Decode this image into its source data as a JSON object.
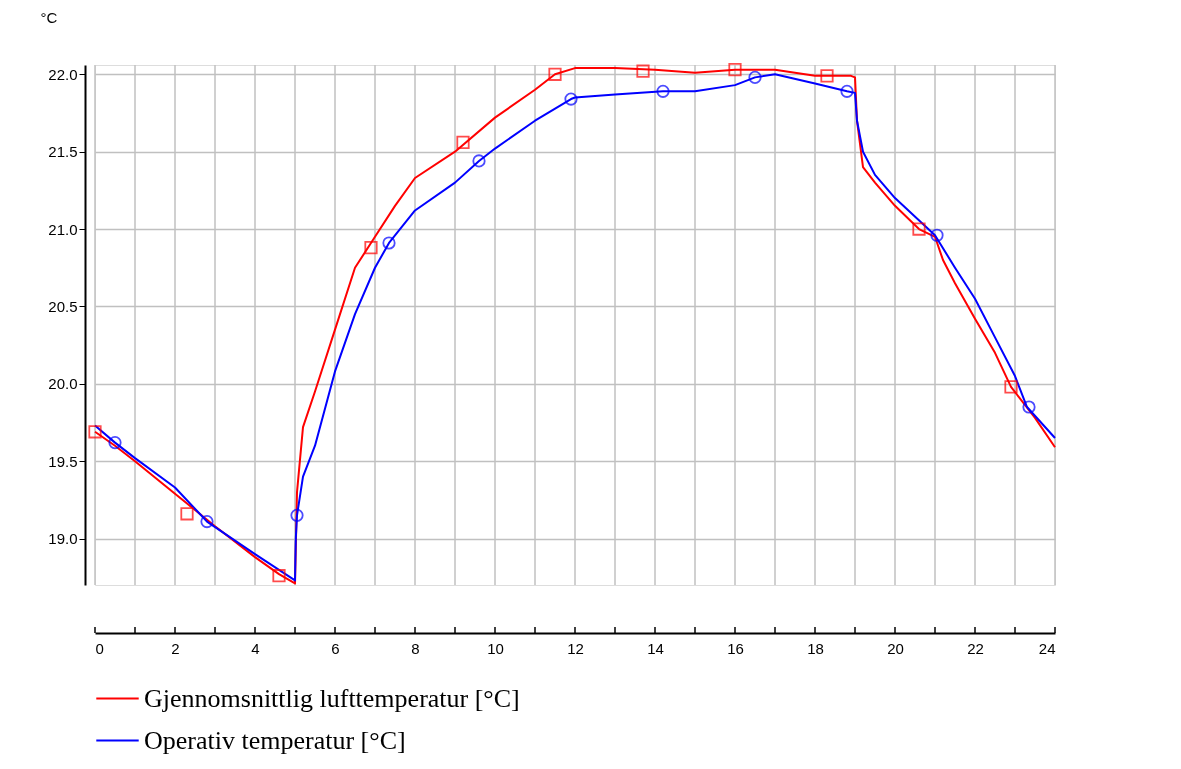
{
  "chart_data": {
    "type": "line",
    "ylabel": "°C",
    "xlim": [
      0,
      24
    ],
    "ylim": [
      18.7,
      22.06
    ],
    "xticks": [
      0,
      {
        "value": 1,
        "label": null
      },
      2,
      {
        "value": 3,
        "label": null
      },
      4,
      {
        "value": 5,
        "label": null
      },
      6,
      {
        "value": 7,
        "label": null
      },
      8,
      {
        "value": 9,
        "label": null
      },
      10,
      {
        "value": 11,
        "label": null
      },
      12,
      {
        "value": 13,
        "label": null
      },
      14,
      {
        "value": 15,
        "label": null
      },
      16,
      {
        "value": 17,
        "label": null
      },
      18,
      {
        "value": 19,
        "label": null
      },
      20,
      {
        "value": 21,
        "label": null
      },
      22,
      {
        "value": 23,
        "label": null
      },
      24
    ],
    "yticks": [
      {
        "value": 19,
        "label": "19.0"
      },
      19.5,
      {
        "value": 20,
        "label": "20.0"
      },
      20.5,
      {
        "value": 21,
        "label": "21.0"
      },
      21.5,
      {
        "value": 22,
        "label": "22.0"
      }
    ],
    "grid": true,
    "legend": "bottom",
    "line_style": "solid",
    "series": [
      {
        "name": "Gjennomsnittlig lufttemperatur [°C]",
        "color": "#ff0000",
        "x": [
          0,
          0.5,
          1,
          2,
          3,
          4,
          4.6,
          5,
          5.05,
          5.2,
          5.5,
          6,
          6.5,
          7,
          7.5,
          8,
          9,
          10,
          11,
          11.5,
          12,
          13,
          14,
          15,
          16,
          17,
          18,
          18.9,
          19,
          19.05,
          19.2,
          19.5,
          20,
          20.6,
          21,
          21.2,
          21.5,
          22,
          22.5,
          22.9,
          23.5,
          24
        ],
        "values": [
          19.69,
          19.6,
          19.5,
          19.29,
          19.08,
          18.88,
          18.77,
          18.71,
          19.3,
          19.72,
          19.95,
          20.35,
          20.75,
          20.95,
          21.15,
          21.33,
          21.5,
          21.72,
          21.9,
          22.0,
          22.04,
          22.04,
          22.03,
          22.01,
          22.03,
          22.03,
          21.99,
          21.99,
          21.98,
          21.7,
          21.4,
          21.3,
          21.15,
          21.0,
          20.95,
          20.8,
          20.65,
          20.42,
          20.2,
          19.98,
          19.78,
          19.59
        ]
      },
      {
        "name": "Operativ temperatur [°C]",
        "color": "#0000ff",
        "x": [
          0,
          0.5,
          1,
          2,
          2.8,
          4,
          5,
          5.02,
          5.05,
          5.2,
          5.5,
          6,
          6.5,
          7,
          7.35,
          8,
          9,
          9.6,
          10,
          11,
          11.9,
          12,
          13,
          14.2,
          15,
          16,
          16.5,
          17,
          18,
          18.8,
          19,
          19.05,
          19.2,
          19.5,
          20,
          21,
          21.5,
          22,
          22.5,
          23,
          23.3,
          24
        ],
        "values": [
          19.73,
          19.62,
          19.52,
          19.33,
          19.11,
          18.9,
          18.73,
          19.0,
          19.15,
          19.4,
          19.6,
          20.08,
          20.45,
          20.75,
          20.91,
          21.12,
          21.3,
          21.44,
          21.52,
          21.7,
          21.84,
          21.85,
          21.87,
          21.89,
          21.89,
          21.93,
          21.98,
          22.0,
          21.94,
          21.89,
          21.88,
          21.7,
          21.5,
          21.35,
          21.2,
          20.96,
          20.75,
          20.55,
          20.3,
          20.05,
          19.85,
          19.65
        ]
      },
      {
        "color": "#ff0000",
        "type": "scatter",
        "marker": "square",
        "x": [
          0,
          2.3,
          4.6,
          6.9,
          9.2,
          11.5,
          13.7,
          16.0,
          18.3,
          20.6,
          22.9
        ],
        "values": [
          19.69,
          19.16,
          18.76,
          20.88,
          21.56,
          22.0,
          22.02,
          22.03,
          21.99,
          21.0,
          19.98
        ]
      },
      {
        "color": "#0000ff",
        "type": "scatter",
        "marker": "circle",
        "x": [
          0.5,
          2.8,
          5.05,
          7.35,
          9.6,
          11.9,
          14.2,
          16.5,
          18.8,
          21.05,
          23.35
        ],
        "values": [
          19.62,
          19.11,
          19.15,
          20.91,
          21.44,
          21.84,
          21.89,
          21.98,
          21.89,
          20.96,
          19.85
        ]
      }
    ]
  }
}
